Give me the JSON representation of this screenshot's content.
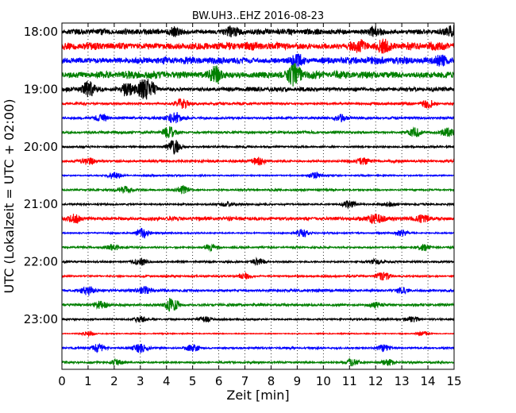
{
  "chart_data": {
    "type": "line",
    "title": "BW.UH3..EHZ 2016-08-23",
    "xlabel": "Zeit  [min]",
    "ylabel": "UTC (Lokalzeit = UTC + 02:00)",
    "xlim": [
      0,
      15
    ],
    "x_ticks": [
      "0",
      "1",
      "2",
      "3",
      "4",
      "5",
      "6",
      "7",
      "8",
      "9",
      "10",
      "11",
      "12",
      "13",
      "14",
      "15"
    ],
    "y_tick_labels": [
      "18:00",
      "19:00",
      "20:00",
      "21:00",
      "22:00",
      "23:00"
    ],
    "y_tick_rows": [
      0,
      4,
      8,
      12,
      16,
      20
    ],
    "grid": "vertical-dotted",
    "colors": [
      "#000000",
      "#ff0000",
      "#0000ff",
      "#008000"
    ],
    "traces": [
      {
        "start": "18:00",
        "color": "#000000",
        "amp": 0.45,
        "events": [
          [
            4.3,
            0.5
          ],
          [
            6.5,
            0.5
          ],
          [
            12.0,
            0.6
          ],
          [
            15.0,
            0.7
          ]
        ]
      },
      {
        "start": "18:15",
        "color": "#ff0000",
        "amp": 0.6,
        "events": [
          [
            11.3,
            0.8
          ],
          [
            12.3,
            0.6
          ]
        ]
      },
      {
        "start": "18:30",
        "color": "#0000ff",
        "amp": 0.55,
        "events": [
          [
            9.0,
            0.7
          ],
          [
            14.5,
            0.6
          ]
        ]
      },
      {
        "start": "18:45",
        "color": "#008000",
        "amp": 0.6,
        "events": [
          [
            5.9,
            1.0
          ],
          [
            8.9,
            1.3
          ]
        ]
      },
      {
        "start": "19:00",
        "color": "#000000",
        "amp": 0.35,
        "events": [
          [
            1.0,
            0.9
          ],
          [
            2.5,
            0.9
          ],
          [
            3.1,
            1.0
          ],
          [
            3.4,
            0.8
          ]
        ]
      },
      {
        "start": "19:15",
        "color": "#ff0000",
        "amp": 0.2,
        "events": [
          [
            4.6,
            0.6
          ],
          [
            14.0,
            0.5
          ]
        ]
      },
      {
        "start": "19:30",
        "color": "#0000ff",
        "amp": 0.2,
        "events": [
          [
            1.5,
            0.5
          ],
          [
            4.3,
            0.8
          ],
          [
            10.7,
            0.4
          ]
        ]
      },
      {
        "start": "19:45",
        "color": "#008000",
        "amp": 0.2,
        "events": [
          [
            4.1,
            0.7
          ],
          [
            13.5,
            0.6
          ],
          [
            14.8,
            0.6
          ]
        ]
      },
      {
        "start": "20:00",
        "color": "#000000",
        "amp": 0.15,
        "events": [
          [
            4.3,
            1.0
          ]
        ]
      },
      {
        "start": "20:15",
        "color": "#ff0000",
        "amp": 0.2,
        "events": [
          [
            1.0,
            0.5
          ],
          [
            7.5,
            0.5
          ],
          [
            11.5,
            0.4
          ]
        ]
      },
      {
        "start": "20:30",
        "color": "#0000ff",
        "amp": 0.12,
        "events": [
          [
            2.0,
            0.5
          ],
          [
            9.7,
            0.4
          ]
        ]
      },
      {
        "start": "20:45",
        "color": "#008000",
        "amp": 0.15,
        "events": [
          [
            2.4,
            0.5
          ],
          [
            4.6,
            0.5
          ]
        ]
      },
      {
        "start": "21:00",
        "color": "#000000",
        "amp": 0.15,
        "events": [
          [
            6.3,
            0.3
          ],
          [
            11.0,
            0.5
          ],
          [
            12.5,
            0.3
          ]
        ]
      },
      {
        "start": "21:15",
        "color": "#ff0000",
        "amp": 0.3,
        "events": [
          [
            0.5,
            0.5
          ],
          [
            12.0,
            0.6
          ],
          [
            13.8,
            0.5
          ]
        ]
      },
      {
        "start": "21:30",
        "color": "#0000ff",
        "amp": 0.12,
        "events": [
          [
            3.1,
            0.6
          ],
          [
            9.2,
            0.5
          ],
          [
            13.0,
            0.4
          ]
        ]
      },
      {
        "start": "21:45",
        "color": "#008000",
        "amp": 0.15,
        "events": [
          [
            2.0,
            0.4
          ],
          [
            5.7,
            0.4
          ],
          [
            13.8,
            0.4
          ]
        ]
      },
      {
        "start": "22:00",
        "color": "#000000",
        "amp": 0.15,
        "events": [
          [
            3.0,
            0.5
          ],
          [
            7.5,
            0.4
          ],
          [
            12.0,
            0.3
          ]
        ]
      },
      {
        "start": "22:15",
        "color": "#ff0000",
        "amp": 0.15,
        "events": [
          [
            7.0,
            0.4
          ],
          [
            12.3,
            0.5
          ]
        ]
      },
      {
        "start": "22:30",
        "color": "#0000ff",
        "amp": 0.2,
        "events": [
          [
            1.0,
            0.6
          ],
          [
            3.2,
            0.5
          ],
          [
            13.0,
            0.4
          ]
        ]
      },
      {
        "start": "22:45",
        "color": "#008000",
        "amp": 0.2,
        "events": [
          [
            1.5,
            0.5
          ],
          [
            4.2,
            1.0
          ],
          [
            12.0,
            0.4
          ]
        ]
      },
      {
        "start": "23:00",
        "color": "#000000",
        "amp": 0.15,
        "events": [
          [
            3.0,
            0.4
          ],
          [
            5.5,
            0.3
          ],
          [
            13.4,
            0.3
          ]
        ]
      },
      {
        "start": "23:15",
        "color": "#ff0000",
        "amp": 0.08,
        "events": [
          [
            1.0,
            0.3
          ],
          [
            13.8,
            0.3
          ]
        ]
      },
      {
        "start": "23:30",
        "color": "#0000ff",
        "amp": 0.15,
        "events": [
          [
            1.4,
            0.5
          ],
          [
            3.0,
            0.6
          ],
          [
            5.0,
            0.5
          ],
          [
            12.3,
            0.5
          ]
        ]
      },
      {
        "start": "23:45",
        "color": "#008000",
        "amp": 0.15,
        "events": [
          [
            2.1,
            0.4
          ],
          [
            11.1,
            0.5
          ],
          [
            12.5,
            0.4
          ]
        ]
      }
    ]
  }
}
